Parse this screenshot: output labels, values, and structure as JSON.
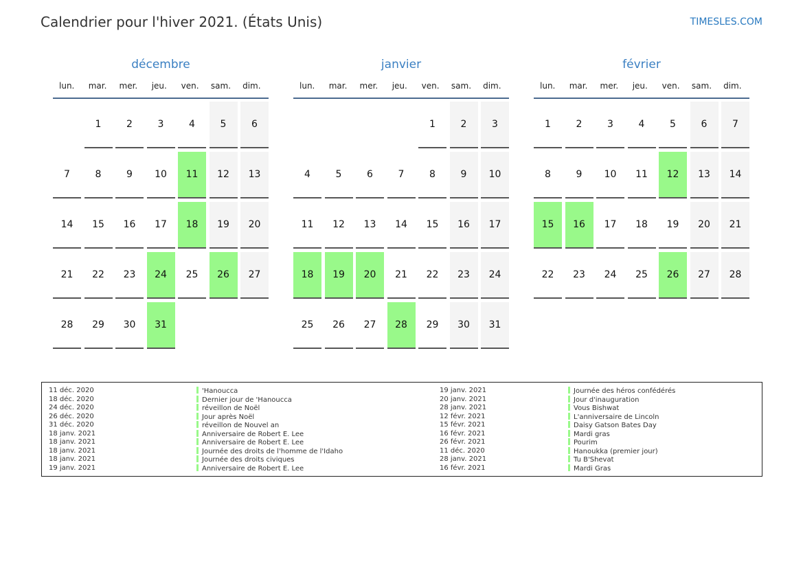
{
  "title": "Calendrier pour l'hiver 2021. (États Unis)",
  "brand": "TIMESLES.COM",
  "colors": {
    "holiday": "#99f98a",
    "weekend": "#f4f4f4",
    "month_title": "#3a7fc2"
  },
  "day_names": [
    "lun.",
    "mar.",
    "mer.",
    "jeu.",
    "ven.",
    "sam.",
    "dim."
  ],
  "months": [
    {
      "name": "décembre",
      "first_weekday": 1,
      "days": 31,
      "holidays": [
        11,
        18,
        24,
        26,
        31
      ]
    },
    {
      "name": "janvier",
      "first_weekday": 4,
      "days": 31,
      "holidays": [
        18,
        19,
        20,
        28
      ]
    },
    {
      "name": "février",
      "first_weekday": 0,
      "days": 28,
      "holidays": [
        12,
        15,
        16,
        26
      ]
    }
  ],
  "legend": [
    {
      "date": "11 déc. 2020",
      "name": "'Hanoucca"
    },
    {
      "date": "18 déc. 2020",
      "name": "Dernier jour de 'Hanoucca"
    },
    {
      "date": "24 déc. 2020",
      "name": "réveillon de Noël"
    },
    {
      "date": "26 déc. 2020",
      "name": "Jour après Noël"
    },
    {
      "date": "31 déc. 2020",
      "name": "réveillon de Nouvel an"
    },
    {
      "date": "18 janv. 2021",
      "name": "Anniversaire de Robert E. Lee"
    },
    {
      "date": "18 janv. 2021",
      "name": "Anniversaire de Robert E. Lee"
    },
    {
      "date": "18 janv. 2021",
      "name": "Journée des droits de l'homme de l'Idaho"
    },
    {
      "date": "18 janv. 2021",
      "name": "Journée des droits civiques"
    },
    {
      "date": "19 janv. 2021",
      "name": "Anniversaire de Robert E. Lee"
    },
    {
      "date": "19 janv. 2021",
      "name": "Journée des héros confédérés"
    },
    {
      "date": "20 janv. 2021",
      "name": "Jour d'inauguration"
    },
    {
      "date": "28 janv. 2021",
      "name": "Vous Bishwat"
    },
    {
      "date": "12 févr. 2021",
      "name": "L'anniversaire de Lincoln"
    },
    {
      "date": "15 févr. 2021",
      "name": "Daisy Gatson Bates Day"
    },
    {
      "date": "16 févr. 2021",
      "name": "Mardi gras"
    },
    {
      "date": "26 févr. 2021",
      "name": "Pourim"
    },
    {
      "date": "11 déc. 2020",
      "name": "Hanoukka (premier jour)"
    },
    {
      "date": "28 janv. 2021",
      "name": "Tu B'Shevat"
    },
    {
      "date": "16 févr. 2021",
      "name": "Mardi Gras"
    }
  ]
}
